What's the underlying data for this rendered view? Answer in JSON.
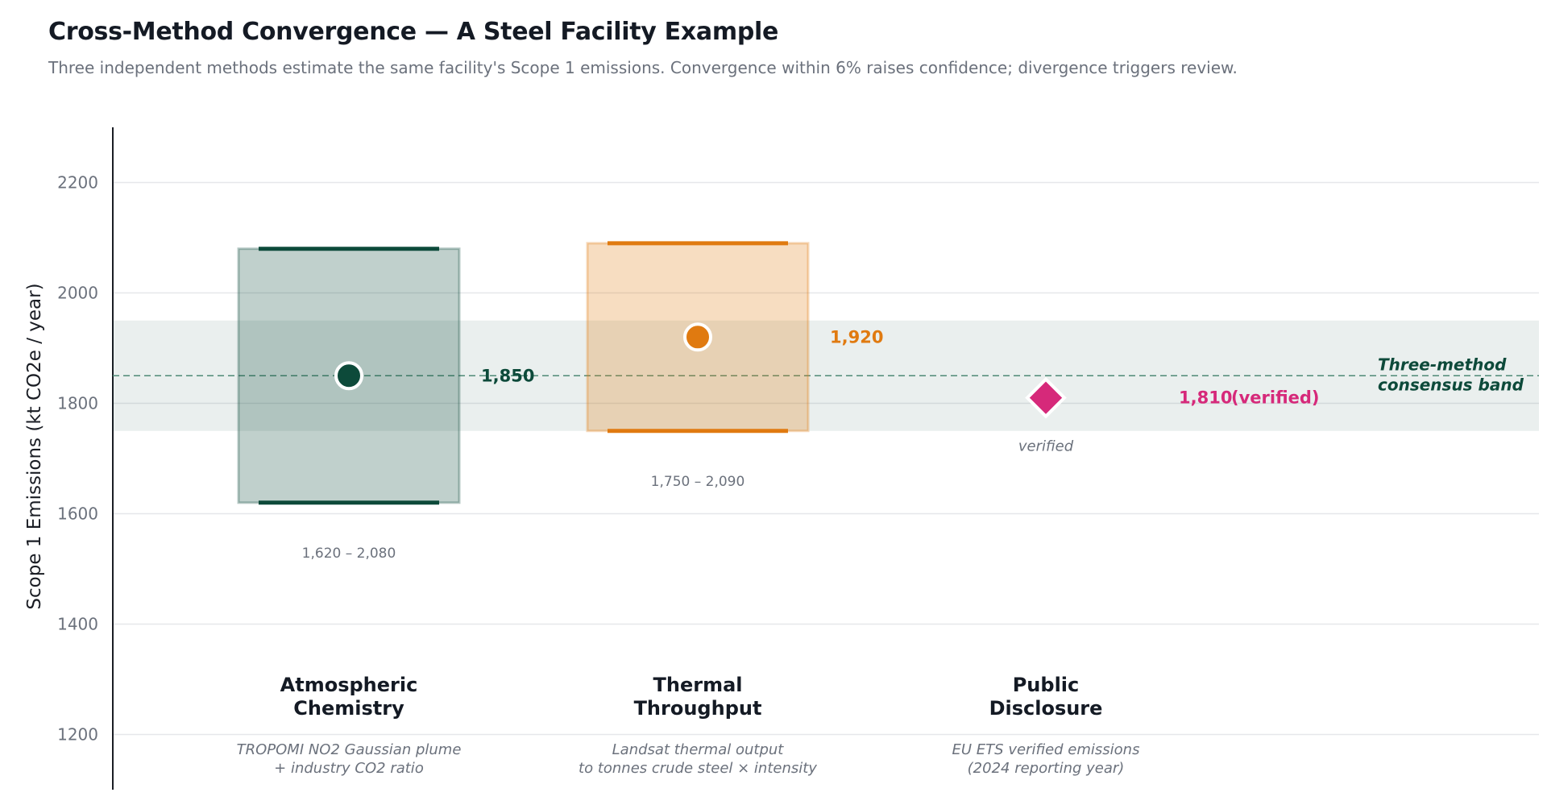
{
  "title": "Cross-Method Convergence — A Steel Facility Example",
  "subtitle": "Three independent methods estimate the same facility's Scope 1 emissions. Convergence within 6% raises confidence; divergence triggers review.",
  "chart_data": {
    "type": "scatter",
    "ylabel": "Scope 1 Emissions (kt CO2e / year)",
    "ylim": [
      1100,
      2300
    ],
    "yticks": [
      1200,
      1400,
      1600,
      1800,
      2000,
      2200
    ],
    "grid": true,
    "consensus": {
      "label_line1": "Three-method",
      "label_line2": "consensus band",
      "low": 1750,
      "high": 1950,
      "center": 1850,
      "color": "#0d4a3a"
    },
    "methods": [
      {
        "name_line1": "Atmospheric",
        "name_line2": "Chemistry",
        "desc_line1": "TROPOMI NO2 Gaussian plume",
        "desc_line2": "+ industry CO2 ratio",
        "value": 1850,
        "value_label": "1,850",
        "low": 1620,
        "high": 2080,
        "range_label": "1,620 – 2,080",
        "color": "#0d4a3a",
        "marker": "circle"
      },
      {
        "name_line1": "Thermal",
        "name_line2": "Throughput",
        "desc_line1": "Landsat thermal output",
        "desc_line2": "to tonnes crude steel × intensity",
        "value": 1920,
        "value_label": "1,920",
        "low": 1750,
        "high": 2090,
        "range_label": "1,750 – 2,090",
        "color": "#e07a10",
        "marker": "circle"
      },
      {
        "name_line1": "Public",
        "name_line2": "Disclosure",
        "desc_line1": "EU ETS verified emissions",
        "desc_line2": "(2024 reporting year)",
        "value": 1810,
        "value_label": "1,810",
        "value_suffix": "(verified)",
        "note": "verified",
        "color": "#d6297a",
        "marker": "diamond"
      }
    ]
  }
}
